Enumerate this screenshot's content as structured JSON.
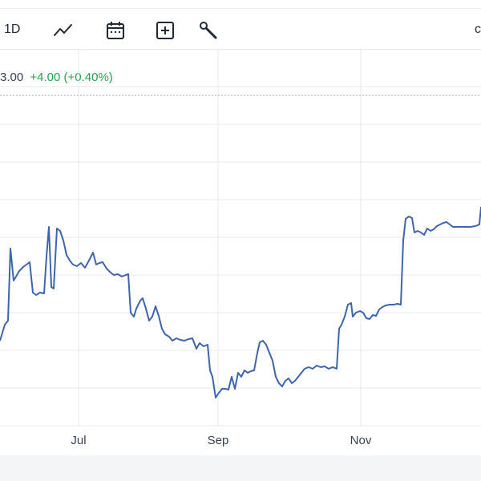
{
  "toolbar": {
    "interval_label": "1D",
    "icons": [
      "line-chart-icon",
      "calendar-icon",
      "add-box-icon",
      "wrench-icon"
    ],
    "edge_glyph": "c"
  },
  "quote": {
    "price_fragment": "3.00",
    "change": "+4.00 (+0.40%)",
    "change_color": "#22a447"
  },
  "colors": {
    "line": "#3d65ad",
    "grid": "#e6e8eb",
    "reference_line": "#8fa6c9",
    "footer": "#f4f5f7"
  },
  "chart_data": {
    "type": "line",
    "grid": true,
    "legend": "none",
    "x_ticks": [
      "Jul",
      "Sep",
      "Nov"
    ],
    "series": [
      {
        "values": [
          [
            0,
            425
          ],
          [
            6,
            405
          ],
          [
            10,
            400
          ],
          [
            13,
            310
          ],
          [
            17,
            350
          ],
          [
            20,
            345
          ],
          [
            24,
            338
          ],
          [
            29,
            333
          ],
          [
            33,
            330
          ],
          [
            37,
            327
          ],
          [
            41,
            365
          ],
          [
            45,
            368
          ],
          [
            50,
            365
          ],
          [
            55,
            366
          ],
          [
            58,
            320
          ],
          [
            61,
            283
          ],
          [
            64,
            358
          ],
          [
            67,
            360
          ],
          [
            71,
            285
          ],
          [
            75,
            288
          ],
          [
            79,
            300
          ],
          [
            83,
            318
          ],
          [
            87,
            325
          ],
          [
            91,
            330
          ],
          [
            96,
            332
          ],
          [
            101,
            328
          ],
          [
            106,
            334
          ],
          [
            111,
            325
          ],
          [
            116,
            315
          ],
          [
            120,
            330
          ],
          [
            124,
            328
          ],
          [
            128,
            327
          ],
          [
            133,
            335
          ],
          [
            138,
            340
          ],
          [
            142,
            343
          ],
          [
            147,
            342
          ],
          [
            152,
            345
          ],
          [
            157,
            343
          ],
          [
            160,
            342
          ],
          [
            163,
            390
          ],
          [
            167,
            395
          ],
          [
            170,
            385
          ],
          [
            175,
            375
          ],
          [
            178,
            372
          ],
          [
            182,
            385
          ],
          [
            186,
            400
          ],
          [
            190,
            395
          ],
          [
            194,
            382
          ],
          [
            198,
            394
          ],
          [
            202,
            410
          ],
          [
            206,
            417
          ],
          [
            211,
            420
          ],
          [
            215,
            425
          ],
          [
            220,
            422
          ],
          [
            225,
            424
          ],
          [
            230,
            425
          ],
          [
            235,
            423
          ],
          [
            240,
            422
          ],
          [
            245,
            435
          ],
          [
            249,
            428
          ],
          [
            254,
            432
          ],
          [
            259,
            430
          ],
          [
            262,
            462
          ],
          [
            265,
            470
          ],
          [
            269,
            496
          ],
          [
            273,
            490
          ],
          [
            277,
            485
          ],
          [
            281,
            485
          ],
          [
            285,
            486
          ],
          [
            289,
            470
          ],
          [
            293,
            485
          ],
          [
            297,
            465
          ],
          [
            301,
            470
          ],
          [
            305,
            462
          ],
          [
            309,
            465
          ],
          [
            313,
            463
          ],
          [
            317,
            462
          ],
          [
            321,
            440
          ],
          [
            324,
            427
          ],
          [
            328,
            425
          ],
          [
            332,
            430
          ],
          [
            336,
            440
          ],
          [
            340,
            450
          ],
          [
            344,
            470
          ],
          [
            348,
            478
          ],
          [
            352,
            482
          ],
          [
            356,
            475
          ],
          [
            360,
            472
          ],
          [
            364,
            478
          ],
          [
            368,
            475
          ],
          [
            372,
            470
          ],
          [
            376,
            465
          ],
          [
            380,
            460
          ],
          [
            385,
            458
          ],
          [
            390,
            460
          ],
          [
            395,
            456
          ],
          [
            400,
            458
          ],
          [
            405,
            457
          ],
          [
            410,
            460
          ],
          [
            415,
            458
          ],
          [
            420,
            460
          ],
          [
            423,
            410
          ],
          [
            426,
            405
          ],
          [
            430,
            395
          ],
          [
            434,
            380
          ],
          [
            438,
            378
          ],
          [
            440,
            395
          ],
          [
            444,
            390
          ],
          [
            449,
            388
          ],
          [
            453,
            390
          ],
          [
            457,
            397
          ],
          [
            461,
            398
          ],
          [
            465,
            393
          ],
          [
            469,
            394
          ],
          [
            473,
            386
          ],
          [
            477,
            383
          ],
          [
            481,
            381
          ],
          [
            486,
            380
          ],
          [
            491,
            380
          ],
          [
            496,
            379
          ],
          [
            500,
            380
          ],
          [
            503,
            300
          ],
          [
            506,
            273
          ],
          [
            510,
            270
          ],
          [
            514,
            272
          ],
          [
            517,
            290
          ],
          [
            521,
            288
          ],
          [
            525,
            290
          ],
          [
            529,
            293
          ],
          [
            533,
            285
          ],
          [
            537,
            288
          ],
          [
            541,
            286
          ],
          [
            545,
            282
          ],
          [
            549,
            280
          ],
          [
            553,
            278
          ],
          [
            557,
            277
          ],
          [
            561,
            280
          ],
          [
            565,
            283
          ],
          [
            569,
            283
          ],
          [
            575,
            283
          ],
          [
            581,
            283
          ],
          [
            587,
            283
          ],
          [
            593,
            282
          ],
          [
            598,
            280
          ],
          [
            600,
            258
          ]
        ]
      }
    ]
  }
}
